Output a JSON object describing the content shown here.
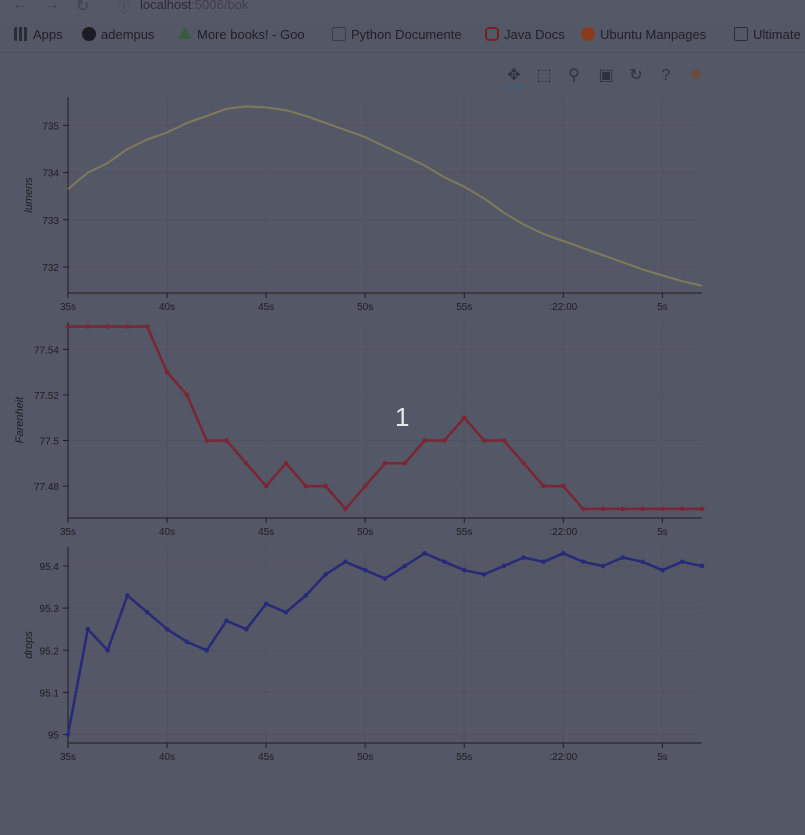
{
  "browser": {
    "url_host": "localhost",
    "url_path": ":5006/bok",
    "bookmarks": [
      {
        "label": "Apps",
        "icon": "apps-grid-icon",
        "color": "#2b2c33"
      },
      {
        "label": "adempus",
        "icon": "github-icon",
        "color": "#1b1c22"
      },
      {
        "label": "More books! - Goo",
        "icon": "google-drive-icon",
        "color": "#3b5a3e"
      },
      {
        "label": "Python Documente",
        "icon": "python-doc-icon",
        "color": "#3b3d48"
      },
      {
        "label": "Java Docs",
        "icon": "oracle-icon",
        "color": "#7a1f28"
      },
      {
        "label": "Ubuntu Manpages",
        "icon": "ubuntu-icon",
        "color": "#8a3a1e"
      },
      {
        "label": "Ultimate",
        "icon": "bookmark-page-icon",
        "color": "#2a2c36"
      }
    ]
  },
  "toolbar": {
    "tools": [
      "pan-tool-icon",
      "box-zoom-tool-icon",
      "wheel-zoom-tool-icon",
      "save-tool-icon",
      "reset-tool-icon",
      "help-tool-icon",
      "bokeh-logo-icon"
    ],
    "active": "pan-tool-icon"
  },
  "overlay_number": "1",
  "chart_data": [
    {
      "type": "line",
      "ylabel": "lumens",
      "color": "#7f7a5a",
      "x_ticks": [
        "35s",
        "40s",
        "45s",
        "50s",
        "55s",
        ":22:00",
        "5s"
      ],
      "y_ticks": [
        "732",
        "733",
        "734",
        "735"
      ],
      "ylim": [
        731.45,
        735.6
      ],
      "xlim": [
        35,
        67
      ],
      "x": [
        35,
        36,
        37,
        38,
        39,
        40,
        41,
        42,
        43,
        44,
        45,
        46,
        47,
        48,
        49,
        50,
        51,
        52,
        53,
        54,
        55,
        56,
        57,
        58,
        59,
        60,
        61,
        62,
        63,
        64,
        65,
        66,
        67
      ],
      "values": [
        733.65,
        734.0,
        734.2,
        734.5,
        734.7,
        734.85,
        735.05,
        735.2,
        735.35,
        735.4,
        735.38,
        735.32,
        735.2,
        735.05,
        734.9,
        734.75,
        734.55,
        734.35,
        734.15,
        733.9,
        733.7,
        733.45,
        733.15,
        732.9,
        732.7,
        732.55,
        732.4,
        732.25,
        732.1,
        731.95,
        731.82,
        731.7,
        731.6
      ]
    },
    {
      "type": "line",
      "ylabel": "Farenheit",
      "color": "#7a2634",
      "markers": true,
      "x_ticks": [
        "35s",
        "40s",
        "45s",
        "50s",
        "55s",
        ":22:00",
        "5s"
      ],
      "y_ticks": [
        "77.48",
        "77.5",
        "77.52",
        "77.54"
      ],
      "ylim": [
        77.466,
        77.552
      ],
      "xlim": [
        35,
        67
      ],
      "x": [
        35,
        36,
        37,
        38,
        39,
        40,
        41,
        42,
        43,
        44,
        45,
        46,
        47,
        48,
        49,
        50,
        51,
        52,
        53,
        54,
        55,
        56,
        57,
        58,
        59,
        60,
        61,
        62,
        63,
        64,
        65,
        66,
        67
      ],
      "values": [
        77.55,
        77.55,
        77.55,
        77.55,
        77.55,
        77.53,
        77.52,
        77.5,
        77.5,
        77.49,
        77.48,
        77.49,
        77.48,
        77.48,
        77.47,
        77.48,
        77.49,
        77.49,
        77.5,
        77.5,
        77.51,
        77.5,
        77.5,
        77.49,
        77.48,
        77.48,
        77.47,
        77.47,
        77.47,
        77.47,
        77.47,
        77.47,
        77.47
      ]
    },
    {
      "type": "line",
      "ylabel": "drops",
      "color": "#262a78",
      "markers": true,
      "x_ticks": [
        "35s",
        "40s",
        "45s",
        "50s",
        "55s",
        ":22:00",
        "5s"
      ],
      "y_ticks": [
        "95",
        "95.1",
        "95.2",
        "95.3",
        "95.4"
      ],
      "ylim": [
        94.98,
        95.445
      ],
      "xlim": [
        35,
        67
      ],
      "x": [
        35,
        36,
        37,
        38,
        39,
        40,
        41,
        42,
        43,
        44,
        45,
        46,
        47,
        48,
        49,
        50,
        51,
        52,
        53,
        54,
        55,
        56,
        57,
        58,
        59,
        60,
        61,
        62,
        63,
        64,
        65,
        66,
        67
      ],
      "values": [
        95.0,
        95.25,
        95.2,
        95.33,
        95.29,
        95.25,
        95.22,
        95.2,
        95.27,
        95.25,
        95.31,
        95.29,
        95.33,
        95.38,
        95.41,
        95.39,
        95.37,
        95.4,
        95.43,
        95.41,
        95.39,
        95.38,
        95.4,
        95.42,
        95.41,
        95.43,
        95.41,
        95.4,
        95.42,
        95.41,
        95.39,
        95.41,
        95.4
      ]
    }
  ]
}
